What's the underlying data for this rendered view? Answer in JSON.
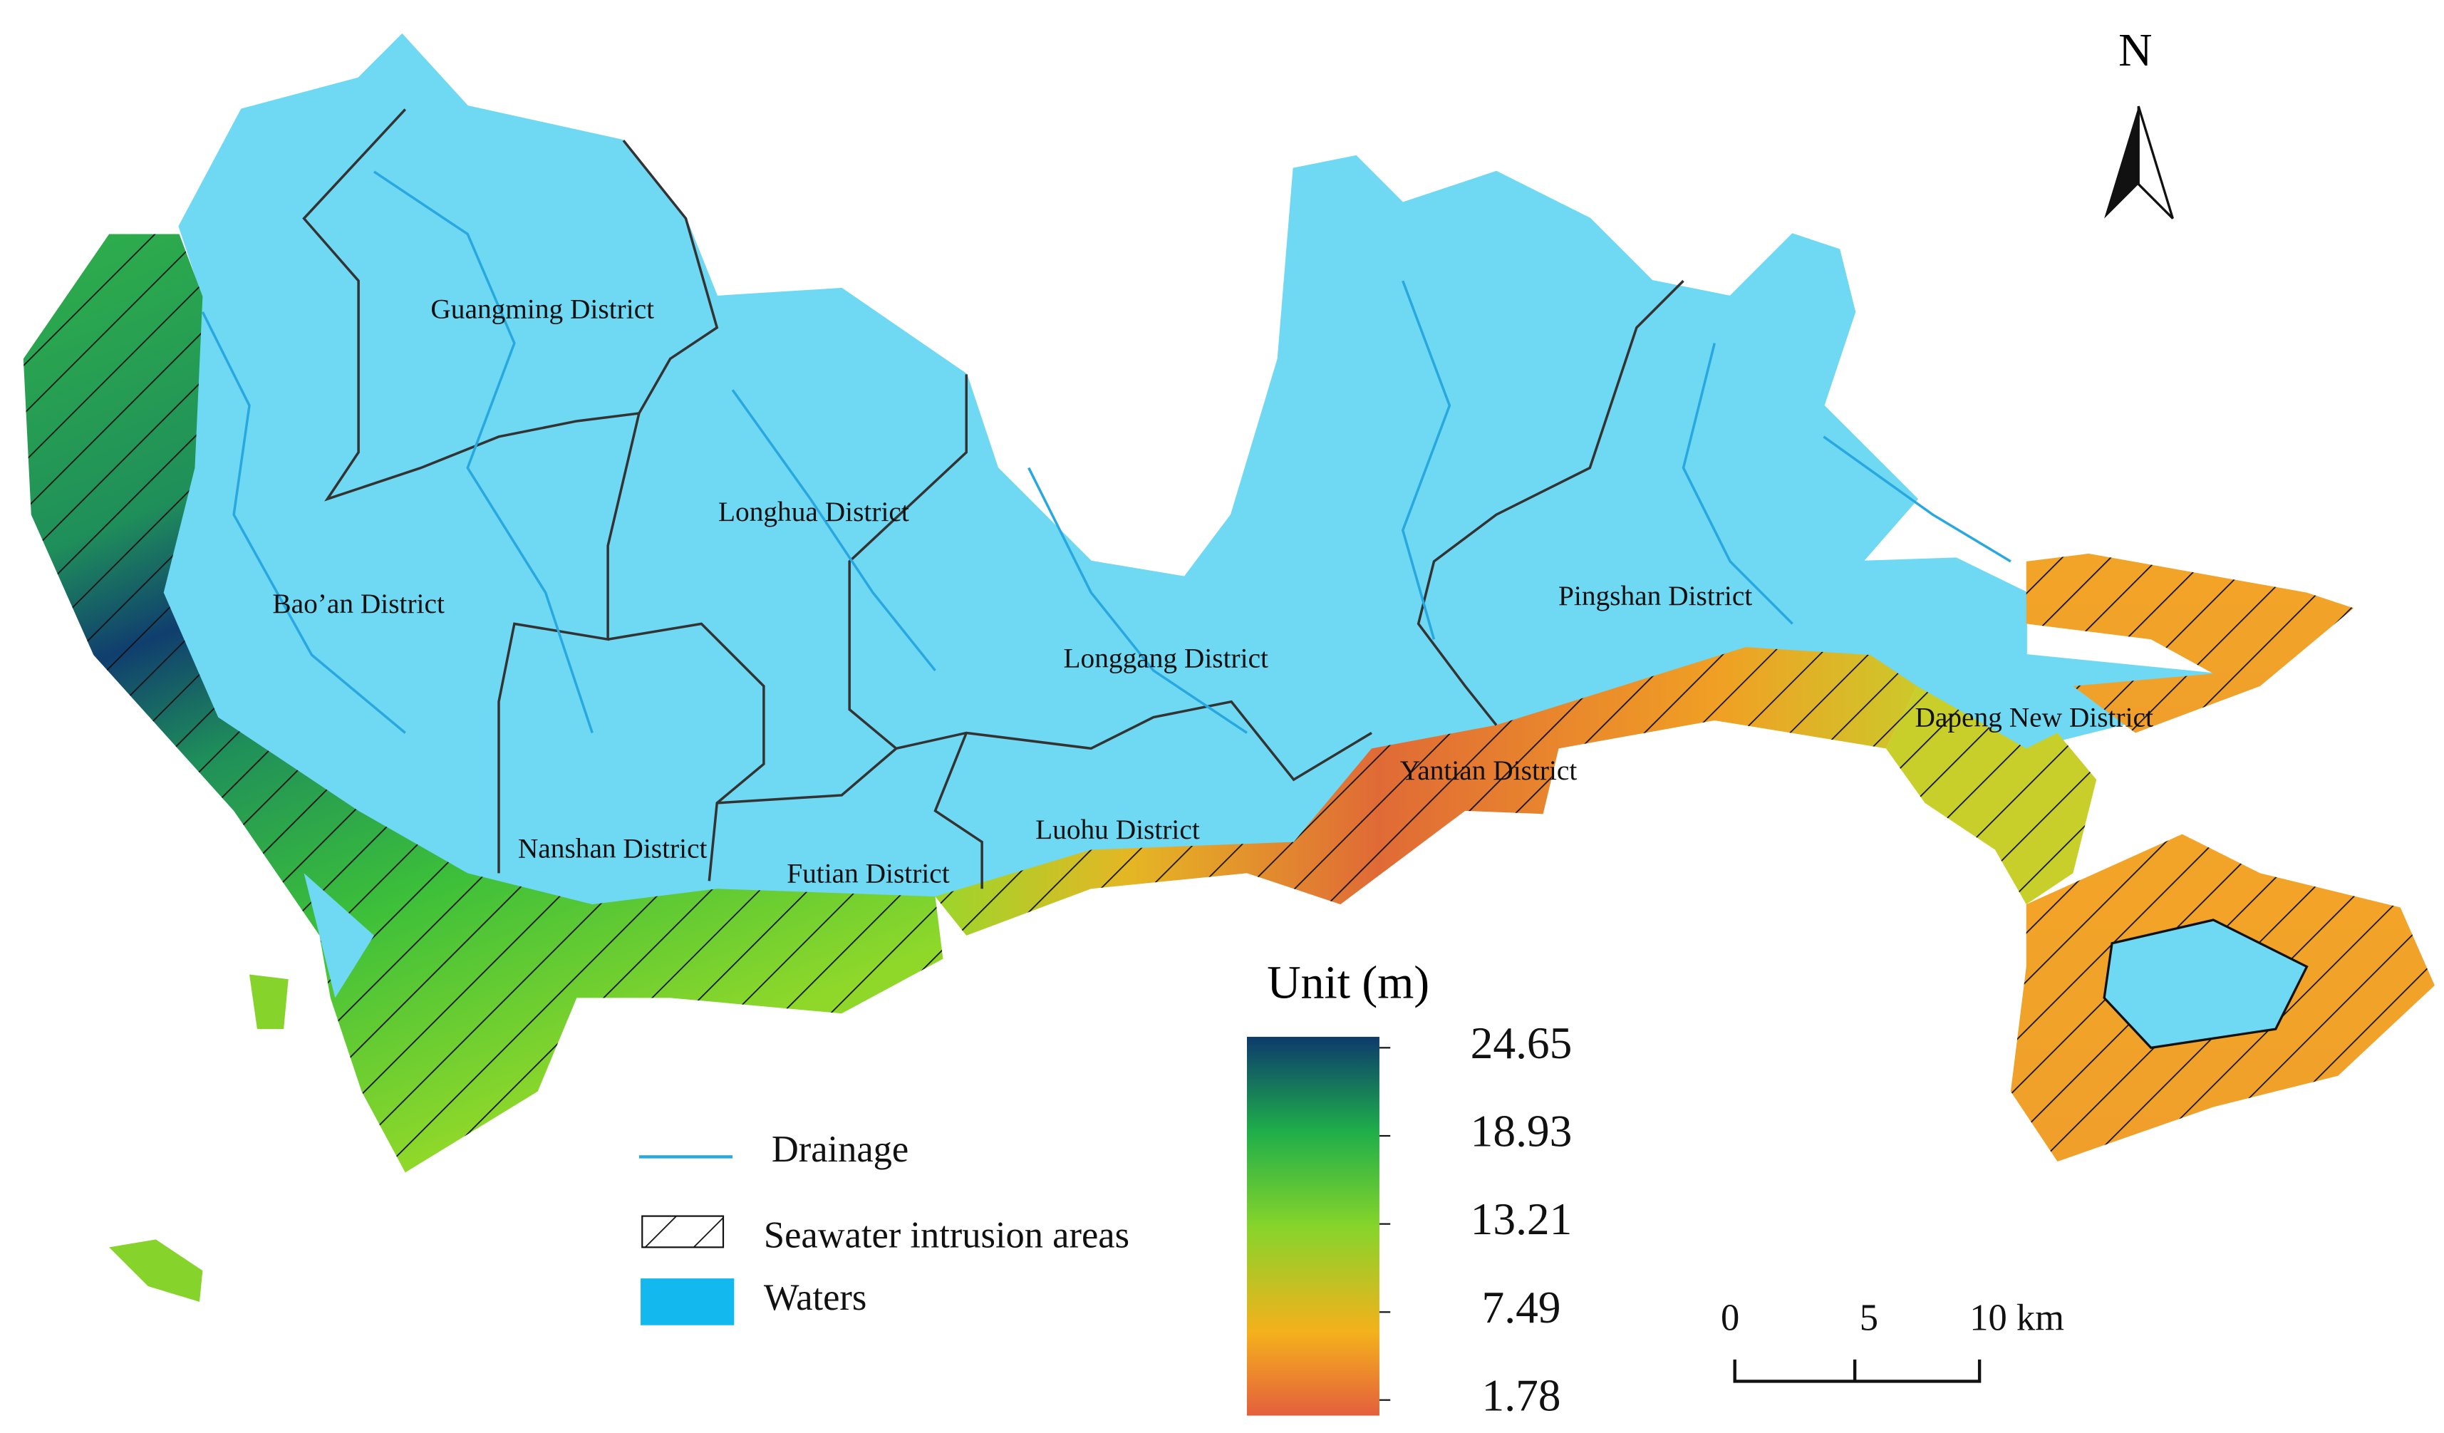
{
  "map": {
    "north": "N",
    "districts": [
      "Guangming District",
      "Longhua District",
      "Bao’an District",
      "Longgang District",
      "Pingshan District",
      "Dapeng New District",
      "Yantian District",
      "Luohu District",
      "Nanshan District",
      "Futian District"
    ],
    "legend": {
      "drainage": "Drainage",
      "seawater": "Seawater intrusion areas",
      "waters": "Waters"
    },
    "colorbar": {
      "title": "Unit (m)",
      "ticks": [
        24.65,
        18.93,
        13.21,
        7.49,
        1.78
      ]
    },
    "scale_bar": {
      "labels": [
        "0",
        "5",
        "10 km"
      ]
    }
  }
}
